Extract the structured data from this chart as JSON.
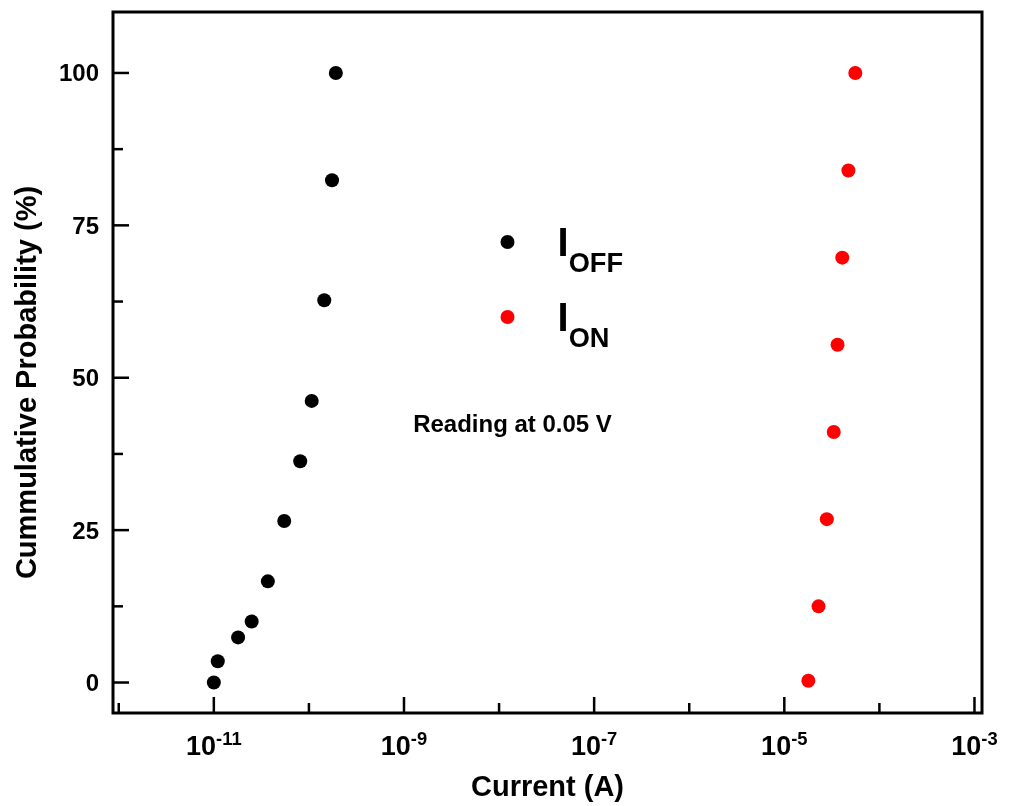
{
  "chart_data": {
    "type": "scatter",
    "xlabel": "Current (A)",
    "ylabel": "Cummulative Probability (%)",
    "log": "x",
    "marker": "circle",
    "legend": "top",
    "grid": false,
    "xlim": [
      8.7e-13,
      0.0012
    ],
    "xticks": [
      {
        "value": 1e-12,
        "label": null
      },
      {
        "value": 1e-11,
        "label": "10$^{-11}$"
      },
      {
        "value": 1e-10,
        "label": null
      },
      {
        "value": 1e-09,
        "label": "10$^{-9}$"
      },
      {
        "value": 1e-08,
        "label": null
      },
      {
        "value": 1e-07,
        "label": "10$^{-7}$"
      },
      {
        "value": 1e-06,
        "label": null
      },
      {
        "value": 1e-05,
        "label": "10$^{-5}$"
      },
      {
        "value": 0.0001,
        "label": null
      },
      {
        "value": 0.001,
        "label": "10$^{-3}$"
      }
    ],
    "ylim": [
      -5,
      110
    ],
    "yticks": [
      0,
      {
        "value": 12.5,
        "label": null
      },
      25,
      {
        "value": 37.5,
        "label": null
      },
      50,
      {
        "value": 62.5,
        "label": null
      },
      75,
      {
        "value": 87.5,
        "label": null
      },
      100
    ],
    "annotations": [
      "Reading at 0.05 V"
    ],
    "series": [
      {
        "name": "I$_{OFF}$",
        "color": "#000000",
        "x": [
          1e-11,
          1.1e-11,
          1.8e-11,
          2.5e-11,
          3.7e-11,
          5.5e-11,
          8.1e-11,
          1.07e-10,
          1.45e-10,
          1.75e-10,
          1.92e-10
        ],
        "values": [
          0,
          3.5,
          7.4,
          10,
          16.6,
          26.5,
          36.3,
          46.2,
          62.7,
          82.4,
          100
        ]
      },
      {
        "name": "I$_{ON}$",
        "color": "#ff0000",
        "x": [
          1.79e-05,
          2.29e-05,
          2.8e-05,
          3.31e-05,
          3.63e-05,
          4.07e-05,
          4.72e-05,
          5.58e-05
        ],
        "values": [
          0.3,
          12.5,
          26.8,
          41.1,
          55.4,
          69.7,
          84,
          100
        ]
      }
    ]
  }
}
